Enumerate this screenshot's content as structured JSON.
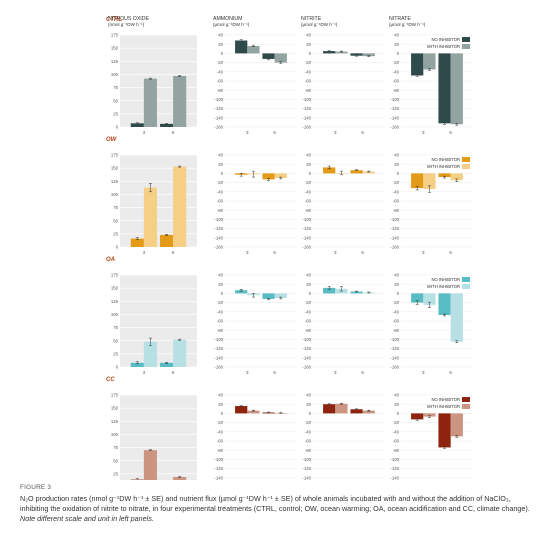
{
  "figure": {
    "label": "FIGURE 3",
    "caption_main": "N₂O production rates (nmol g⁻¹DW h⁻¹ ± SE) and nutrient flux (µmol g⁻¹DW h⁻¹ ± SE) of whole animals incubated with and without the addition of NaClO₃, inhibiting the oxidation of nitrite to nitrate, in four experimental treatments (CTRL, control; OW, ocean warming; OA, ocean acidification and CC, climate change).",
    "caption_note": "Note different scale and unit in left panels."
  },
  "columns": [
    {
      "key": "n2o",
      "title": "NITROUS OXIDE",
      "unit": "(nmol g⁻¹DW h⁻¹)"
    },
    {
      "key": "ammonium",
      "title": "AMMONIUM",
      "unit": "(µmol g⁻¹DW h⁻¹)"
    },
    {
      "key": "nitrite",
      "title": "NITRITE",
      "unit": "(µmol g⁻¹DW h⁻¹)"
    },
    {
      "key": "nitrate",
      "title": "NITRATE",
      "unit": "(µmol g⁻¹DW h⁻¹)"
    }
  ],
  "legend_labels": {
    "no_inhibitor": "NO INHIBITOR",
    "with_inhibitor": "WITH INHIBITOR"
  },
  "rows": [
    {
      "label": "CTRL",
      "colors": {
        "no": "#2f4a4a",
        "with": "#93a3a1"
      }
    },
    {
      "label": "OW",
      "colors": {
        "no": "#e39a16",
        "with": "#f6cf86"
      }
    },
    {
      "label": "OA",
      "colors": {
        "no": "#58bcc5",
        "with": "#b6e0e3"
      }
    },
    {
      "label": "CC",
      "colors": {
        "no": "#8e2410",
        "with": "#cc9582"
      }
    }
  ],
  "chart_data": {
    "type": "bar",
    "categories": [
      "3",
      "6"
    ],
    "series_names": [
      "NO INHIBITOR",
      "WITH INHIBITOR"
    ],
    "y_left": {
      "ylim": [
        0,
        175
      ],
      "ticks": [
        0,
        25,
        50,
        75,
        100,
        125,
        150,
        175
      ]
    },
    "y_nutrient": {
      "ylim": [
        -160,
        40
      ],
      "ticks": [
        40,
        20,
        0,
        -20,
        -40,
        -60,
        -80,
        -100,
        -120,
        -140,
        -160
      ]
    },
    "panels": [
      {
        "row": "CTRL",
        "column": "n2o",
        "no": [
          7,
          6
        ],
        "with": [
          92,
          97
        ],
        "no_err": [
          1,
          1
        ],
        "with_err": [
          1,
          1
        ]
      },
      {
        "row": "CTRL",
        "column": "ammonium",
        "no": [
          28,
          -12
        ],
        "with": [
          16,
          -20
        ],
        "no_err": [
          2,
          2
        ],
        "with_err": [
          1,
          2
        ]
      },
      {
        "row": "CTRL",
        "column": "nitrite",
        "no": [
          5,
          -5
        ],
        "with": [
          4,
          -6
        ],
        "no_err": [
          1,
          1
        ],
        "with_err": [
          1,
          1
        ]
      },
      {
        "row": "CTRL",
        "column": "nitrate",
        "no": [
          -48,
          -152
        ],
        "with": [
          -35,
          -154
        ],
        "no_err": [
          2,
          2
        ],
        "with_err": [
          2,
          2
        ]
      },
      {
        "row": "OW",
        "column": "n2o",
        "no": [
          16,
          23
        ],
        "with": [
          113,
          153
        ],
        "no_err": [
          2,
          1
        ],
        "with_err": [
          8,
          1
        ]
      },
      {
        "row": "OW",
        "column": "ammonium",
        "no": [
          -3,
          -13
        ],
        "with": [
          -2,
          -10
        ],
        "no_err": [
          3,
          2
        ],
        "with_err": [
          6,
          2
        ]
      },
      {
        "row": "OW",
        "column": "nitrite",
        "no": [
          13,
          7
        ],
        "with": [
          1,
          4
        ],
        "no_err": [
          3,
          1
        ],
        "with_err": [
          4,
          1
        ]
      },
      {
        "row": "OW",
        "column": "nitrate",
        "no": [
          -32,
          -8
        ],
        "with": [
          -34,
          -15
        ],
        "no_err": [
          4,
          2
        ],
        "with_err": [
          7,
          3
        ]
      },
      {
        "row": "OA",
        "column": "n2o",
        "no": [
          8,
          8
        ],
        "with": [
          48,
          52
        ],
        "no_err": [
          2,
          1
        ],
        "with_err": [
          7,
          1
        ]
      },
      {
        "row": "OA",
        "column": "ammonium",
        "no": [
          7,
          -12
        ],
        "with": [
          -4,
          -10
        ],
        "no_err": [
          2,
          1
        ],
        "with_err": [
          4,
          2
        ]
      },
      {
        "row": "OA",
        "column": "nitrite",
        "no": [
          12,
          4
        ],
        "with": [
          10,
          2
        ],
        "no_err": [
          3,
          1
        ],
        "with_err": [
          5,
          1
        ]
      },
      {
        "row": "OA",
        "column": "nitrate",
        "no": [
          -20,
          -47
        ],
        "with": [
          -25,
          -105
        ],
        "no_err": [
          4,
          2
        ],
        "with_err": [
          6,
          2
        ]
      },
      {
        "row": "CC",
        "column": "n2o",
        "no": [
          14,
          9
        ],
        "with": [
          70,
          19
        ],
        "no_err": [
          2,
          1
        ],
        "with_err": [
          1,
          1
        ]
      },
      {
        "row": "CC",
        "column": "ammonium",
        "no": [
          16,
          2
        ],
        "with": [
          6,
          1
        ],
        "no_err": [
          1,
          1
        ],
        "with_err": [
          1,
          1
        ]
      },
      {
        "row": "CC",
        "column": "nitrite",
        "no": [
          20,
          9
        ],
        "with": [
          21,
          6
        ],
        "no_err": [
          1,
          1
        ],
        "with_err": [
          1,
          1
        ]
      },
      {
        "row": "CC",
        "column": "nitrate",
        "no": [
          -13,
          -74
        ],
        "with": [
          -7,
          -50
        ],
        "no_err": [
          2,
          2
        ],
        "with_err": [
          2,
          2
        ]
      }
    ]
  }
}
